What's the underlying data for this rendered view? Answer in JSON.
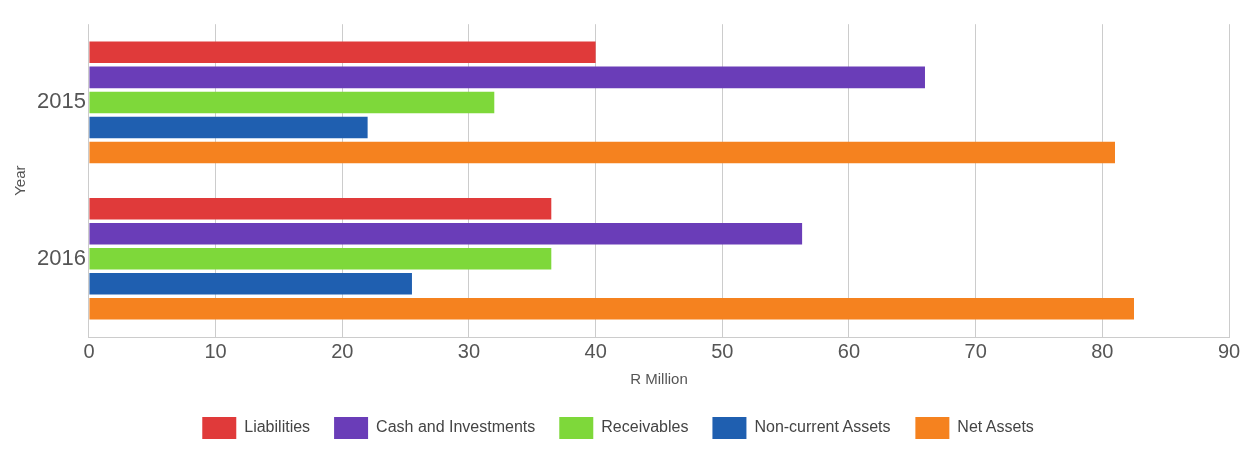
{
  "chart_data": {
    "type": "bar",
    "orientation": "horizontal",
    "categories": [
      "2015",
      "2016"
    ],
    "xlabel": "R Million",
    "ylabel": "Year",
    "series": [
      {
        "name": "Liabilities",
        "color": "#e03a3a",
        "values": [
          40,
          36.5
        ]
      },
      {
        "name": "Cash and Investments",
        "color": "#6a3db8",
        "values": [
          66,
          56.3
        ]
      },
      {
        "name": "Receivables",
        "color": "#7ed83a",
        "values": [
          32,
          36.5
        ]
      },
      {
        "name": "Non-current Assets",
        "color": "#1f5fb0",
        "values": [
          22,
          25.5
        ]
      },
      {
        "name": "Net Assets",
        "color": "#f5821f",
        "values": [
          81,
          82.5
        ]
      }
    ],
    "xlim": [
      0,
      90
    ],
    "xticks": [
      0,
      10,
      20,
      30,
      40,
      50,
      60,
      70,
      80,
      90
    ],
    "grid": "x",
    "legend": "bottom"
  }
}
